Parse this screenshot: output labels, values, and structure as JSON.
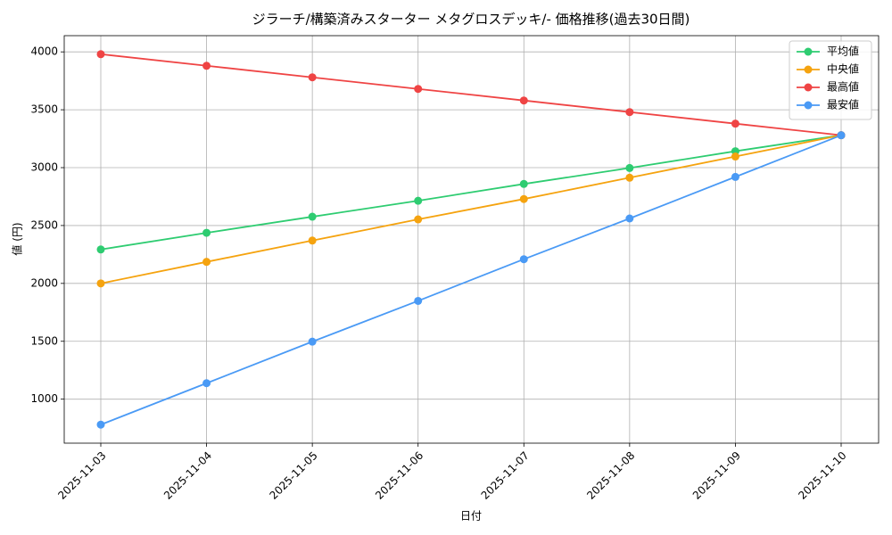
{
  "chart_data": {
    "type": "line",
    "title": "ジラーチ/構築済みスターター メタグロスデッキ/- 価格推移(過去30日間)",
    "x_label": "日付",
    "y_label": "値 (円)",
    "categories": [
      "2025-11-03",
      "2025-11-04",
      "2025-11-05",
      "2025-11-06",
      "2025-11-07",
      "2025-11-08",
      "2025-11-09",
      "2025-11-10"
    ],
    "series": [
      {
        "name": "平均値",
        "color": "#2ecc71",
        "values": [
          2293,
          2437,
          2576,
          2714,
          2859,
          2997,
          3142,
          3280
        ]
      },
      {
        "name": "中央値",
        "color": "#f5a30f",
        "values": [
          2000,
          2186,
          2370,
          2553,
          2729,
          2913,
          3096,
          3280
        ]
      },
      {
        "name": "最高値",
        "color": "#ef4444",
        "values": [
          3980,
          3880,
          3780,
          3680,
          3580,
          3480,
          3380,
          3280
        ]
      },
      {
        "name": "最安値",
        "color": "#4a9af5",
        "values": [
          780,
          1138,
          1497,
          1849,
          2209,
          2561,
          2920,
          3280
        ]
      }
    ],
    "ylim": [
      620,
      4140
    ],
    "yticks": [
      1000,
      1500,
      2000,
      2500,
      3000,
      3500,
      4000
    ],
    "grid": true,
    "legend": "upper right"
  }
}
